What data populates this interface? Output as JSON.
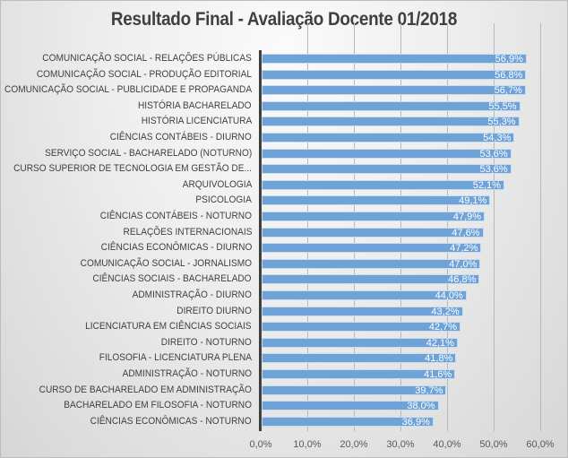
{
  "chart_data": {
    "type": "bar",
    "orientation": "horizontal",
    "title": "Resultado Final - Avaliação Docente 01/2018",
    "xlabel": "",
    "ylabel": "",
    "xlim": [
      0,
      60
    ],
    "grid": true,
    "legend": "none",
    "x_ticks": [
      "0,0%",
      "10,0%",
      "20,0%",
      "30,0%",
      "40,0%",
      "50,0%",
      "60,0%"
    ],
    "categories": [
      "COMUNICAÇÃO SOCIAL - RELAÇÕES PÚBLICAS",
      "COMUNICAÇÃO SOCIAL - PRODUÇÃO EDITORIAL",
      "COMUNICAÇÃO SOCIAL - PUBLICIDADE E PROPAGANDA",
      "HISTÓRIA BACHARELADO",
      "HISTÓRIA LICENCIATURA",
      "CIÊNCIAS CONTÁBEIS - DIURNO",
      "SERVIÇO SOCIAL - BACHARELADO (NOTURNO)",
      "CURSO SUPERIOR DE TECNOLOGIA EM GESTÃO DE...",
      "ARQUIVOLOGIA",
      "PSICOLOGIA",
      "CIÊNCIAS CONTÁBEIS - NOTURNO",
      "RELAÇÕES INTERNACIONAIS",
      "CIÊNCIAS ECONÔMICAS - DIURNO",
      "COMUNICAÇÃO SOCIAL - JORNALISMO",
      "CIÊNCIAS SOCIAIS - BACHARELADO",
      "ADMINISTRAÇÃO - DIURNO",
      "DIREITO DIURNO",
      "LICENCIATURA EM CIÊNCIAS SOCIAIS",
      "DIREITO - NOTURNO",
      "FILOSOFIA - LICENCIATURA PLENA",
      "ADMINISTRAÇÃO - NOTURNO",
      "CURSO DE BACHARELADO EM ADMINISTRAÇÃO",
      "BACHARELADO EM FILOSOFIA - NOTURNO",
      "CIÊNCIAS ECONÔMICAS - NOTURNO"
    ],
    "values": [
      56.9,
      56.8,
      56.7,
      55.5,
      55.3,
      54.3,
      53.6,
      53.6,
      52.1,
      49.1,
      47.9,
      47.6,
      47.2,
      47.0,
      46.8,
      44.0,
      43.2,
      42.7,
      42.1,
      41.8,
      41.6,
      39.7,
      38.0,
      36.9
    ],
    "value_labels": [
      "56,9%",
      "56,8%",
      "56,7%",
      "55,5%",
      "55,3%",
      "54,3%",
      "53,6%",
      "53,6%",
      "52,1%",
      "49,1%",
      "47,9%",
      "47,6%",
      "47,2%",
      "47,0%",
      "46,8%",
      "44,0%",
      "43,2%",
      "42,7%",
      "42,1%",
      "41,8%",
      "41,6%",
      "39,7%",
      "38,0%",
      "36,9%"
    ],
    "bar_color": "#6fa3d8"
  }
}
